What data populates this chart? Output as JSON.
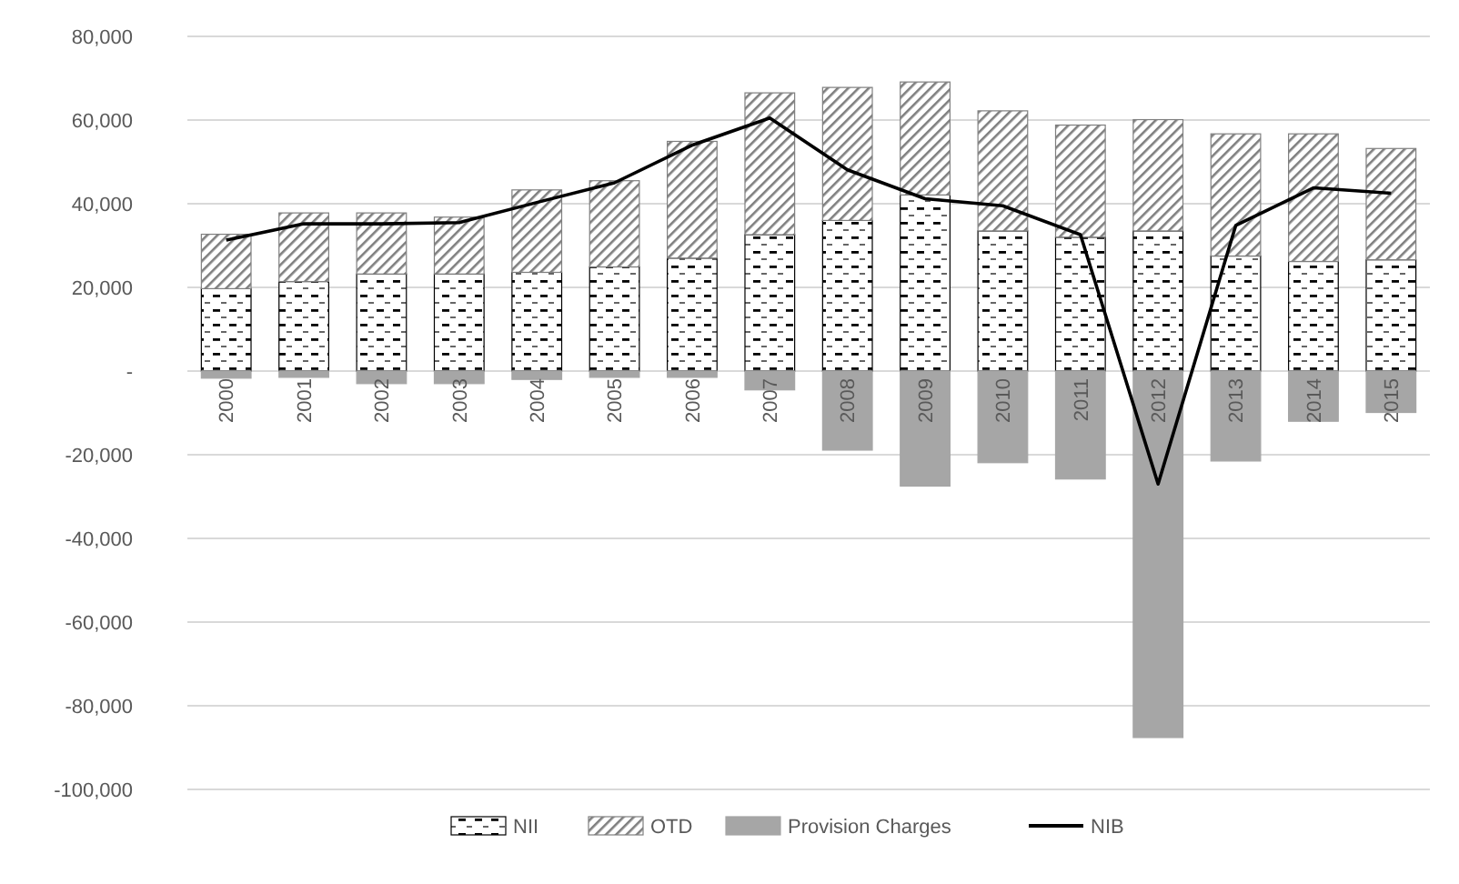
{
  "chart_data": {
    "type": "bar",
    "stacked": true,
    "categories": [
      "2000",
      "2001",
      "2002",
      "2003",
      "2004",
      "2005",
      "2006",
      "2007",
      "2008",
      "2009",
      "2010",
      "2011",
      "2012",
      "2013",
      "2014",
      "2015"
    ],
    "series": [
      {
        "name": "NII",
        "color": "#000000",
        "values": [
          19700,
          21400,
          23200,
          23200,
          23600,
          24900,
          27000,
          32600,
          36000,
          42100,
          33500,
          32000,
          33500,
          27500,
          26200,
          26600
        ]
      },
      {
        "name": "OTD",
        "color": "#7f7f7f",
        "values": [
          13000,
          16400,
          14600,
          13600,
          19700,
          20600,
          27900,
          33900,
          31800,
          27000,
          28700,
          26800,
          26600,
          29200,
          30500,
          26600
        ]
      },
      {
        "name": "Provision Charges",
        "color": "#a6a6a6",
        "values": [
          -1700,
          -1500,
          -3000,
          -3000,
          -2000,
          -1500,
          -1500,
          -4500,
          -18900,
          -27500,
          -21900,
          -25800,
          -87600,
          -21500,
          -12000,
          -9900
        ]
      },
      {
        "name": "NIB",
        "type": "line",
        "color": "#000000",
        "values": [
          31300,
          35200,
          35200,
          35500,
          40300,
          45000,
          54000,
          60500,
          48100,
          41200,
          39500,
          32600,
          -27000,
          34800,
          43800,
          42500
        ]
      }
    ],
    "ylim": [
      -100000,
      80000
    ],
    "yticks": [
      {
        "value": -100000,
        "label": "-100,000"
      },
      {
        "value": -80000,
        "label": "-80,000"
      },
      {
        "value": -60000,
        "label": "-60,000"
      },
      {
        "value": -40000,
        "label": "-40,000"
      },
      {
        "value": -20000,
        "label": "-20,000"
      },
      {
        "value": 0,
        "label": "-"
      },
      {
        "value": 20000,
        "label": "20,000"
      },
      {
        "value": 40000,
        "label": "40,000"
      },
      {
        "value": 60000,
        "label": "60,000"
      },
      {
        "value": 80000,
        "label": "80,000"
      }
    ],
    "grid": "y",
    "legend": "bottom",
    "marker": "none",
    "line_style": "solid"
  }
}
